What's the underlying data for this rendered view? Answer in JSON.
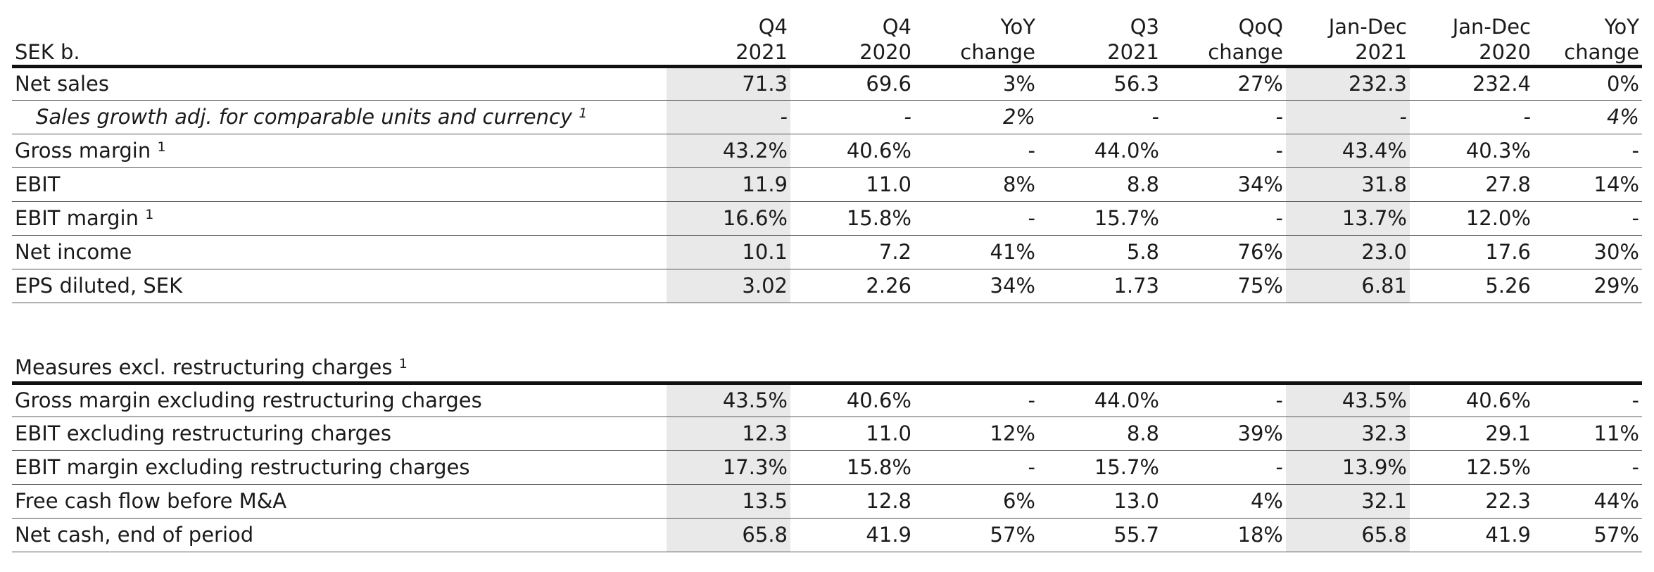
{
  "header": {
    "label": "SEK b.",
    "columns": [
      {
        "line1": "Q4",
        "line2": "2021"
      },
      {
        "line1": "Q4",
        "line2": "2020"
      },
      {
        "line1": "YoY",
        "line2": "change"
      },
      {
        "line1": "Q3",
        "line2": "2021"
      },
      {
        "line1": "QoQ",
        "line2": "change"
      },
      {
        "line1": "Jan-Dec",
        "line2": "2021"
      },
      {
        "line1": "Jan-Dec",
        "line2": "2020"
      },
      {
        "line1": "YoY",
        "line2": "change"
      }
    ]
  },
  "rows": [
    {
      "label": "Net sales",
      "sup": "",
      "values": [
        "71.3",
        "69.6",
        "3%",
        "56.3",
        "27%",
        "232.3",
        "232.4",
        "0%"
      ]
    },
    {
      "label": "Sales growth adj. for comparable units and currency",
      "sup": "1",
      "values": [
        "-",
        "-",
        "2%",
        "-",
        "-",
        "-",
        "-",
        "4%"
      ]
    },
    {
      "label": "Gross margin",
      "sup": "1",
      "values": [
        "43.2%",
        "40.6%",
        "-",
        "44.0%",
        "-",
        "43.4%",
        "40.3%",
        "-"
      ]
    },
    {
      "label": "EBIT",
      "sup": "",
      "values": [
        "11.9",
        "11.0",
        "8%",
        "8.8",
        "34%",
        "31.8",
        "27.8",
        "14%"
      ]
    },
    {
      "label": "EBIT margin",
      "sup": "1",
      "values": [
        "16.6%",
        "15.8%",
        "-",
        "15.7%",
        "-",
        "13.7%",
        "12.0%",
        "-"
      ]
    },
    {
      "label": "Net income",
      "sup": "",
      "values": [
        "10.1",
        "7.2",
        "41%",
        "5.8",
        "76%",
        "23.0",
        "17.6",
        "30%"
      ]
    },
    {
      "label": "EPS diluted, SEK",
      "sup": "",
      "values": [
        "3.02",
        "2.26",
        "34%",
        "1.73",
        "75%",
        "6.81",
        "5.26",
        "29%"
      ]
    }
  ],
  "section2": {
    "title": "Measures excl. restructuring charges",
    "sup": "1",
    "rows": [
      {
        "label": "Gross margin excluding restructuring charges",
        "values": [
          "43.5%",
          "40.6%",
          "-",
          "44.0%",
          "-",
          "43.5%",
          "40.6%",
          "-"
        ]
      },
      {
        "label": "EBIT excluding restructuring charges",
        "values": [
          "12.3",
          "11.0",
          "12%",
          "8.8",
          "39%",
          "32.3",
          "29.1",
          "11%"
        ]
      },
      {
        "label": "EBIT margin excluding restructuring charges",
        "values": [
          "17.3%",
          "15.8%",
          "-",
          "15.7%",
          "-",
          "13.9%",
          "12.5%",
          "-"
        ]
      },
      {
        "label": "Free cash flow before M&A",
        "values": [
          "13.5",
          "12.8",
          "6%",
          "13.0",
          "4%",
          "32.1",
          "22.3",
          "44%"
        ]
      },
      {
        "label": "Net cash, end of period",
        "values": [
          "65.8",
          "41.9",
          "57%",
          "55.7",
          "18%",
          "65.8",
          "41.9",
          "57%"
        ]
      }
    ]
  },
  "colors": {
    "shade": "#e9e9e9",
    "rule": "#111111"
  }
}
